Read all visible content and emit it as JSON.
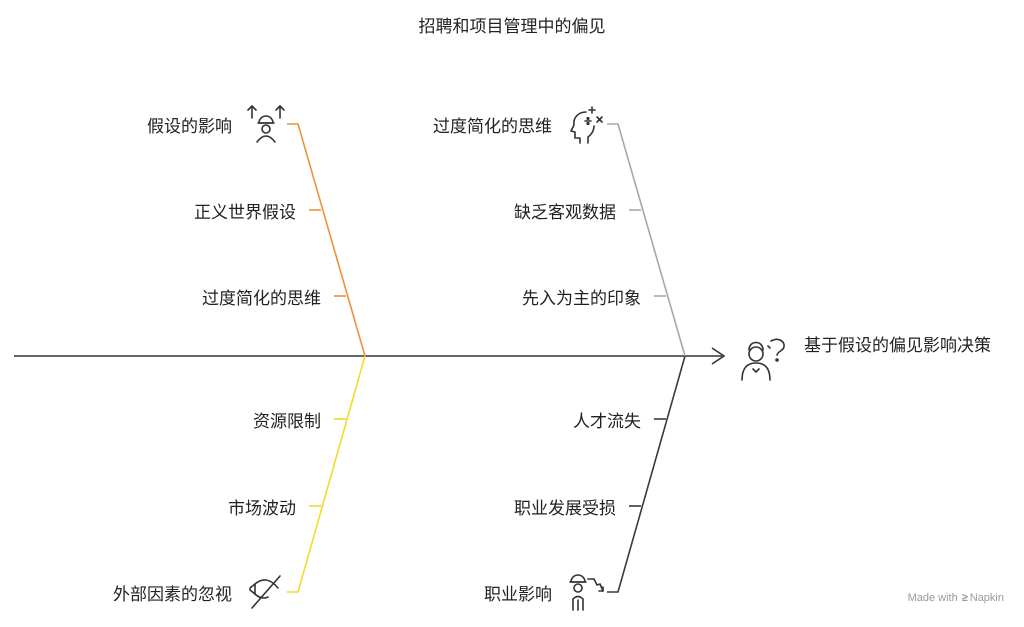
{
  "title": "招聘和项目管理中的偏见",
  "effect": {
    "label": "基于假设的偏见影响决策",
    "icon": "thinking-person-icon"
  },
  "branches": [
    {
      "id": "upper-left",
      "color": "#F0913A",
      "head": {
        "label": "假设的影响",
        "icon": "person-arrows-up-icon"
      },
      "causes": [
        "正义世界假设",
        "过度简化的思维"
      ]
    },
    {
      "id": "upper-right",
      "color": "#A8A8A8",
      "head": {
        "label": "过度简化的思维",
        "icon": "head-math-icon"
      },
      "causes": [
        "缺乏客观数据",
        "先入为主的印象"
      ]
    },
    {
      "id": "lower-left",
      "color": "#F2DB2B",
      "causes": [
        "资源限制",
        "市场波动"
      ],
      "head": {
        "label": "外部因素的忽视",
        "icon": "eye-off-icon"
      }
    },
    {
      "id": "lower-right",
      "color": "#3A3A3A",
      "causes": [
        "人才流失",
        "职业发展受损"
      ],
      "head": {
        "label": "职业影响",
        "icon": "person-decline-icon"
      }
    }
  ],
  "credit": {
    "prefix": "Made with",
    "brand": "Napkin"
  }
}
